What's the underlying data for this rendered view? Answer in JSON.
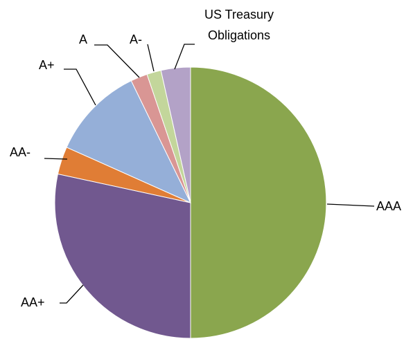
{
  "chart_data": {
    "type": "pie",
    "categories": [
      "AAA",
      "AA+",
      "AA-",
      "A+",
      "A",
      "A-",
      "US Treasury Obligations"
    ],
    "values": [
      50,
      28.4,
      3.3,
      11.1,
      2,
      1.7,
      3.5
    ],
    "colors": [
      "#8aa64e",
      "#71588f",
      "#e07d35",
      "#95afd8",
      "#d99694",
      "#c3d69b",
      "#b3a2c7"
    ]
  }
}
